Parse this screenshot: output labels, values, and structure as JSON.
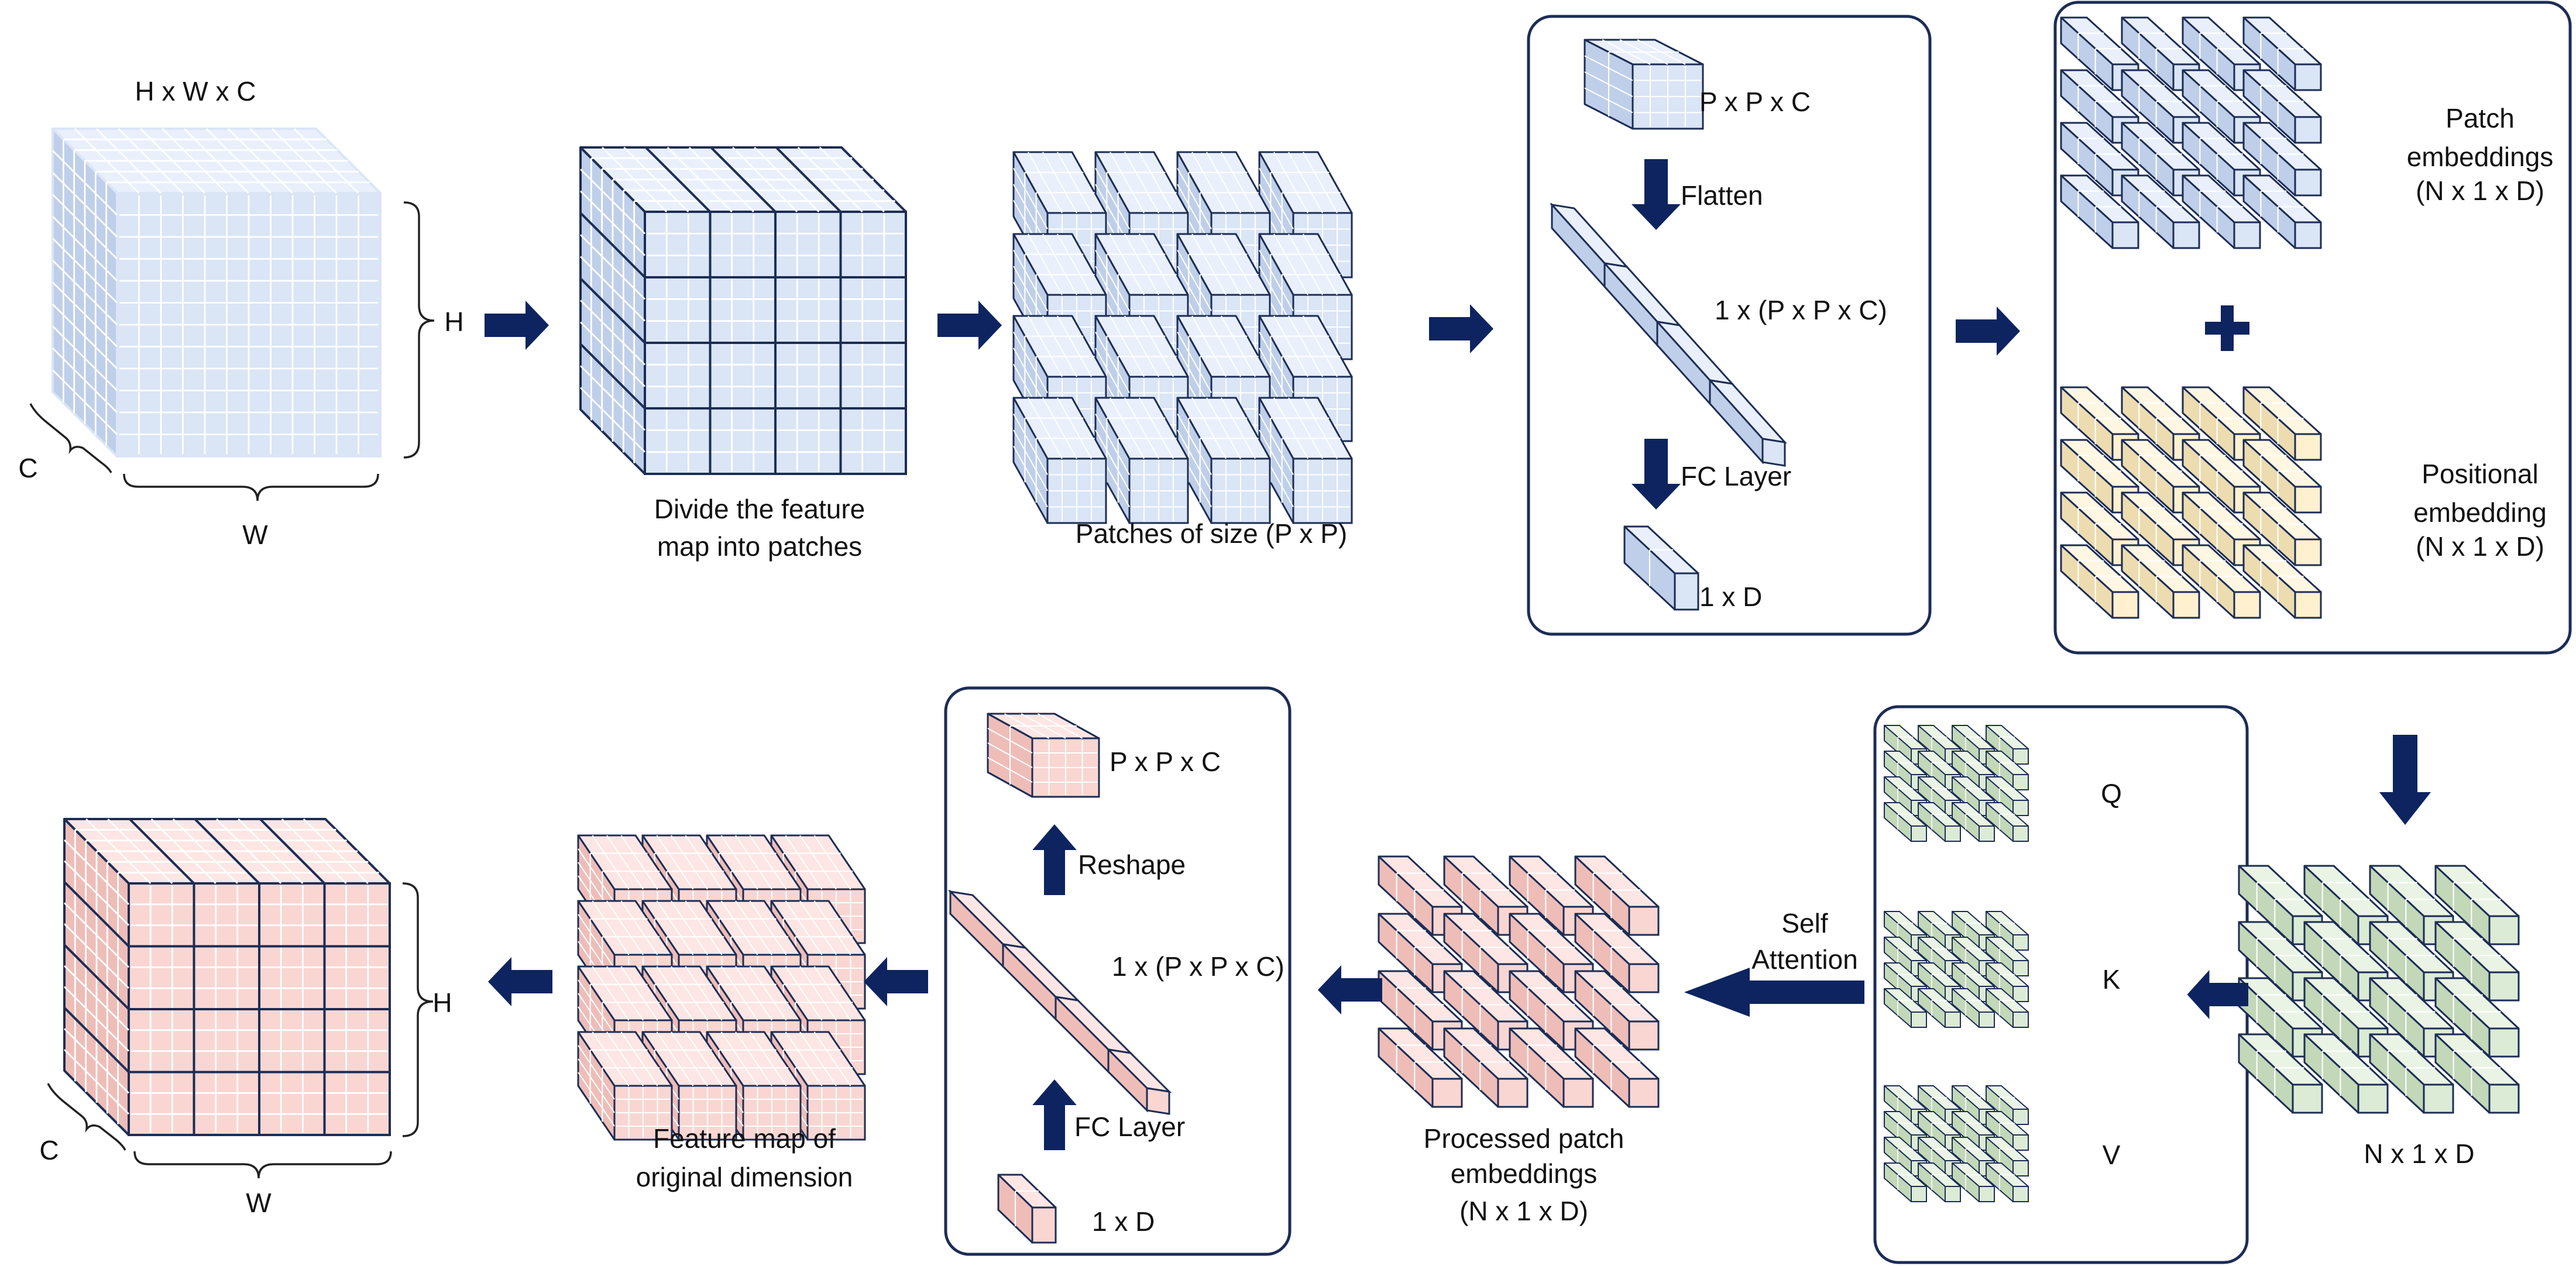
{
  "colors": {
    "blue_front": "#dae5f6",
    "blue_top": "#e9f0fb",
    "blue_side": "#bfcfe9",
    "yellow_front": "#fff1cf",
    "yellow_top": "#fff7e2",
    "yellow_side": "#ecdcb0",
    "green_front": "#dcebd6",
    "green_top": "#eaf4e5",
    "green_side": "#c2d8b8",
    "pink_front": "#f9d6d2",
    "pink_top": "#fde6e3",
    "pink_side": "#eebdb8",
    "arrow": "#0e2460",
    "outline": "#1c2d55"
  },
  "top_row": {
    "input_dims": "H x W x C",
    "input_h": "H",
    "input_w": "W",
    "input_c": "C",
    "divide_caption_line1": "Divide the feature",
    "divide_caption_line2": "map into patches",
    "patches_caption": "Patches of size (P x P)"
  },
  "flatten_panel": {
    "patch_label": "P x P x C",
    "flatten_label": "Flatten",
    "vector_label": "1 x (P x P x C)",
    "fc_label": "FC Layer",
    "output_label": "1 x D"
  },
  "embedding_panel": {
    "patch_line1": "Patch",
    "patch_line2": "embeddings",
    "patch_line3": "(N x 1 x D)",
    "plus": "+",
    "pos_line1": "Positional",
    "pos_line2": "embedding",
    "pos_line3": "(N x 1 x D)"
  },
  "bottom_row": {
    "sum_label": "N x 1 x D",
    "q_label": "Q",
    "k_label": "K",
    "v_label": "V",
    "attn_line1": "Self",
    "attn_line2": "Attention",
    "processed_line1": "Processed patch",
    "processed_line2": "embeddings",
    "processed_line3": "(N x 1 x D)",
    "feature_line1": "Feature map of",
    "feature_line2": "original dimension",
    "output_h": "H",
    "output_w": "W",
    "output_c": "C"
  },
  "reshape_panel": {
    "patch_label": "P x P x C",
    "reshape_label": "Reshape",
    "vector_label": "1 x (P x P x C)",
    "fc_label": "FC Layer",
    "input_label": "1 x D"
  }
}
